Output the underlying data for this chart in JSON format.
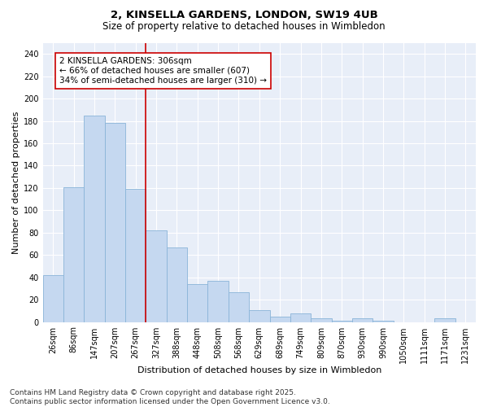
{
  "title_line1": "2, KINSELLA GARDENS, LONDON, SW19 4UB",
  "title_line2": "Size of property relative to detached houses in Wimbledon",
  "xlabel": "Distribution of detached houses by size in Wimbledon",
  "ylabel": "Number of detached properties",
  "categories": [
    "26sqm",
    "86sqm",
    "147sqm",
    "207sqm",
    "267sqm",
    "327sqm",
    "388sqm",
    "448sqm",
    "508sqm",
    "568sqm",
    "629sqm",
    "689sqm",
    "749sqm",
    "809sqm",
    "870sqm",
    "930sqm",
    "990sqm",
    "1050sqm",
    "1111sqm",
    "1171sqm",
    "1231sqm"
  ],
  "values": [
    42,
    121,
    185,
    178,
    119,
    82,
    67,
    34,
    37,
    27,
    11,
    5,
    8,
    3,
    1,
    3,
    1,
    0,
    0,
    3,
    0
  ],
  "bar_color": "#c5d8f0",
  "bar_edge_color": "#8ab4d8",
  "annotation_text": "2 KINSELLA GARDENS: 306sqm\n← 66% of detached houses are smaller (607)\n34% of semi-detached houses are larger (310) →",
  "annotation_box_facecolor": "#ffffff",
  "annotation_box_edgecolor": "#cc0000",
  "vline_x": 4.5,
  "vline_color": "#cc0000",
  "ylim": [
    0,
    250
  ],
  "yticks": [
    0,
    20,
    40,
    60,
    80,
    100,
    120,
    140,
    160,
    180,
    200,
    220,
    240
  ],
  "grid_color": "#ffffff",
  "background_color": "#e8eef8",
  "footer_text": "Contains HM Land Registry data © Crown copyright and database right 2025.\nContains public sector information licensed under the Open Government Licence v3.0.",
  "title_fontsize": 9.5,
  "subtitle_fontsize": 8.5,
  "axis_label_fontsize": 8,
  "tick_fontsize": 7,
  "annotation_fontsize": 7.5,
  "footer_fontsize": 6.5
}
